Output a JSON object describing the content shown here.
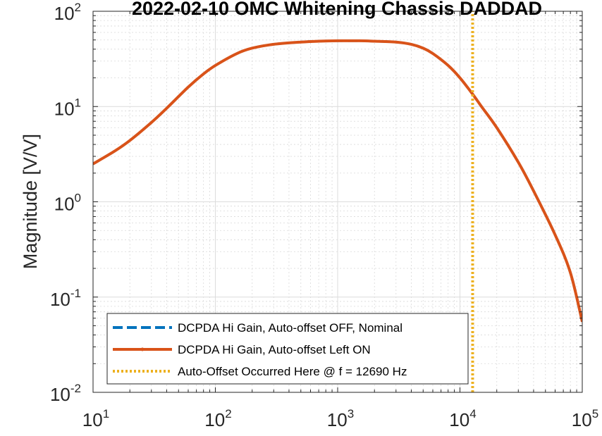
{
  "chart_data": {
    "type": "line",
    "title": "2022-02-10 OMC Whitening Chassis DADDAD",
    "xlabel": "",
    "ylabel": "Magnitude [V/V]",
    "xscale": "log",
    "yscale": "log",
    "xlim": [
      10,
      100000
    ],
    "ylim": [
      0.01,
      100
    ],
    "grid": "on",
    "minor_grid": "on",
    "legend_position": "bottom-left",
    "x_ticks": [
      {
        "base": "10",
        "exp": "1"
      },
      {
        "base": "10",
        "exp": "2"
      },
      {
        "base": "10",
        "exp": "3"
      },
      {
        "base": "10",
        "exp": "4"
      },
      {
        "base": "10",
        "exp": "5"
      }
    ],
    "y_ticks": [
      {
        "base": "10",
        "exp": "2"
      },
      {
        "base": "10",
        "exp": "1"
      },
      {
        "base": "10",
        "exp": "0"
      },
      {
        "base": "10",
        "exp": "-1"
      },
      {
        "base": "10",
        "exp": "-2"
      }
    ],
    "series": [
      {
        "name": "DCPDA Hi Gain, Auto-offset OFF, Nominal",
        "color": "#0072BD",
        "style": "dashed",
        "x": [
          10,
          15,
          20,
          30,
          40,
          60,
          80,
          100,
          150,
          200,
          300,
          500,
          700,
          1000,
          1500,
          2000,
          3000,
          4000,
          5000,
          6000,
          8000,
          10000,
          12690,
          15000,
          20000,
          30000,
          40000,
          60000,
          80000,
          100000
        ],
        "y": [
          2.5,
          3.4,
          4.4,
          6.8,
          9.6,
          16,
          22,
          27,
          36,
          41,
          45,
          47.5,
          48.5,
          49,
          49,
          48.5,
          47.5,
          45,
          41,
          36,
          27,
          20,
          13.5,
          10,
          6,
          2.6,
          1.3,
          0.45,
          0.18,
          0.055
        ]
      },
      {
        "name": "DCPDA Hi Gain, Auto-offset Left ON",
        "color": "#D95319",
        "style": "solid",
        "x": [
          10,
          15,
          20,
          30,
          40,
          60,
          80,
          100,
          150,
          200,
          300,
          500,
          700,
          1000,
          1500,
          2000,
          3000,
          4000,
          5000,
          6000,
          8000,
          10000,
          12690,
          15000,
          20000,
          30000,
          40000,
          60000,
          80000,
          100000
        ],
        "y": [
          2.5,
          3.4,
          4.4,
          6.8,
          9.6,
          16,
          22,
          27,
          36,
          41,
          45,
          47.5,
          48.5,
          49,
          49,
          48.5,
          47.5,
          45,
          41,
          36,
          27,
          20,
          13.5,
          10,
          6,
          2.6,
          1.3,
          0.45,
          0.18,
          0.055
        ]
      },
      {
        "name": "Auto-Offset Occurred Here @ f = 12690 Hz",
        "color": "#EDB120",
        "style": "dotted",
        "x": [
          12690,
          12690
        ],
        "y": [
          0.01,
          100
        ]
      }
    ]
  }
}
